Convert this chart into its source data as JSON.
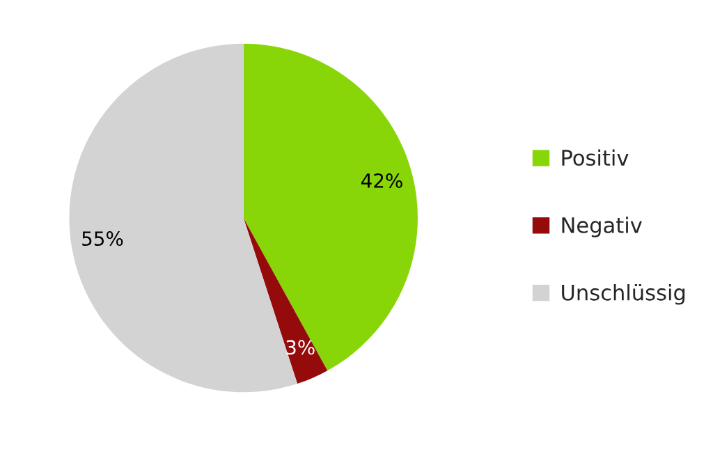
{
  "chart_data": {
    "type": "pie",
    "categories": [
      "Positiv",
      "Negativ",
      "Unschlüssig"
    ],
    "values": [
      42,
      3,
      55
    ],
    "colors": [
      "#88d608",
      "#950b0b",
      "#d3d3d3"
    ],
    "value_labels": [
      "42%",
      "3%",
      "55%"
    ],
    "legend": "right"
  }
}
